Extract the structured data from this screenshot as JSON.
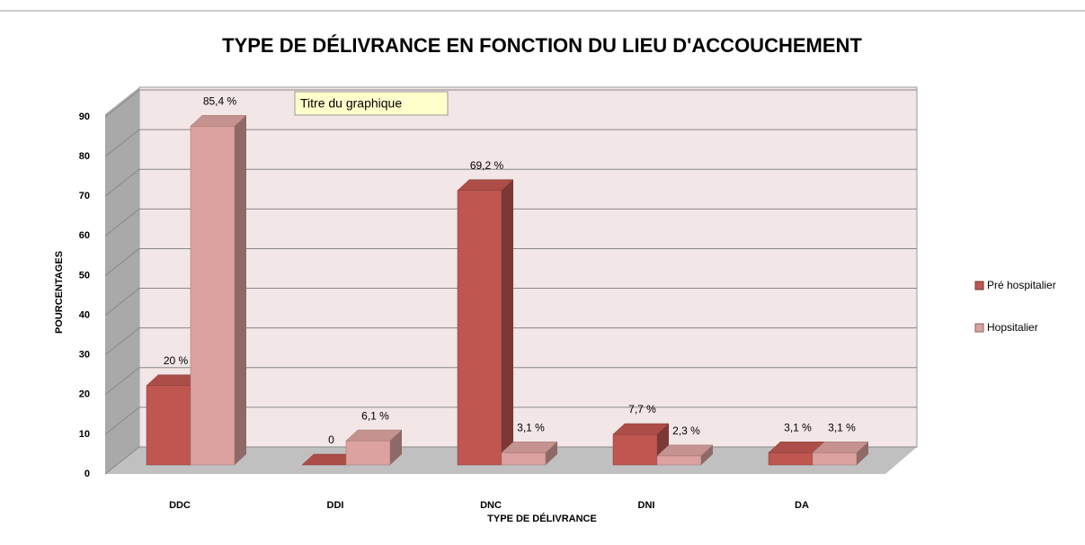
{
  "chart_data": {
    "type": "bar3d",
    "title": "TYPE DE DÉLIVRANCE EN FONCTION DU LIEU D'ACCOUCHEMENT",
    "tooltip": "Titre du graphique",
    "x_label": "TYPE DE DÉLIVRANCE",
    "y_label": "POURCENTAGES",
    "categories": [
      "DDC",
      "DDI",
      "DNC",
      "DNI",
      "DA"
    ],
    "series": [
      {
        "name": "Pré hospitalier",
        "color": "#bf5650",
        "values": [
          20,
          0,
          69.2,
          7.7,
          3.1
        ],
        "value_labels": [
          "20 %",
          "0",
          "69,2 %",
          "7,7 %",
          "3,1 %"
        ]
      },
      {
        "name": "Hopsitalier",
        "color": "#dca29f",
        "values": [
          85.4,
          6.1,
          3.1,
          2.3,
          3.1
        ],
        "value_labels": [
          "85,4 %",
          "6,1 %",
          "3,1 %",
          "2,3 %",
          "3,1 %"
        ]
      }
    ],
    "ylim": [
      0,
      90
    ],
    "yticks": [
      0,
      10,
      20,
      30,
      40,
      50,
      60,
      70,
      80,
      90
    ],
    "grid": true,
    "legend": "right"
  }
}
